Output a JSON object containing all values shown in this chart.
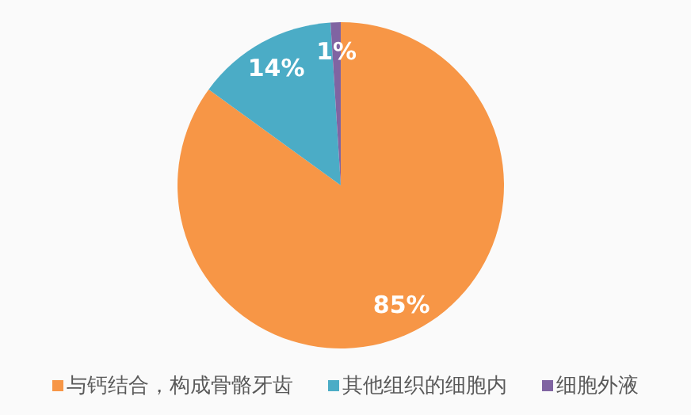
{
  "chart_data": {
    "type": "pie",
    "categories": [
      "与钙结合，构成骨骼牙齿",
      "其他组织的细胞内",
      "细胞外液"
    ],
    "values": [
      85,
      14,
      1
    ],
    "colors": [
      "#f79646",
      "#4bacc6",
      "#8064a2"
    ],
    "value_labels": [
      "85%",
      "14%",
      "1%"
    ],
    "legend": "bottom"
  }
}
